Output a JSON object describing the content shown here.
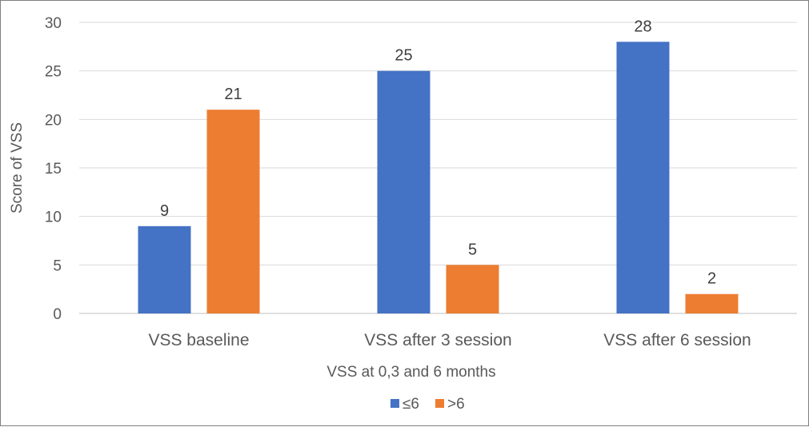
{
  "chart_data": {
    "type": "bar",
    "categories": [
      "VSS baseline",
      "VSS after 3 session",
      "VSS after 6 session"
    ],
    "series": [
      {
        "name": "≤6",
        "values": [
          9,
          25,
          28
        ],
        "color": "#4472c4"
      },
      {
        "name": ">6",
        "values": [
          21,
          5,
          2
        ],
        "color": "#ed7d31"
      }
    ],
    "title": "",
    "xlabel": "VSS at 0,3 and 6 months",
    "ylabel": "Score of VSS",
    "ylim": [
      0,
      30
    ],
    "yticks": [
      "0",
      "5",
      "10",
      "15",
      "20",
      "25",
      "30"
    ],
    "grid": true,
    "legend_position": "bottom",
    "data_labels": true
  }
}
